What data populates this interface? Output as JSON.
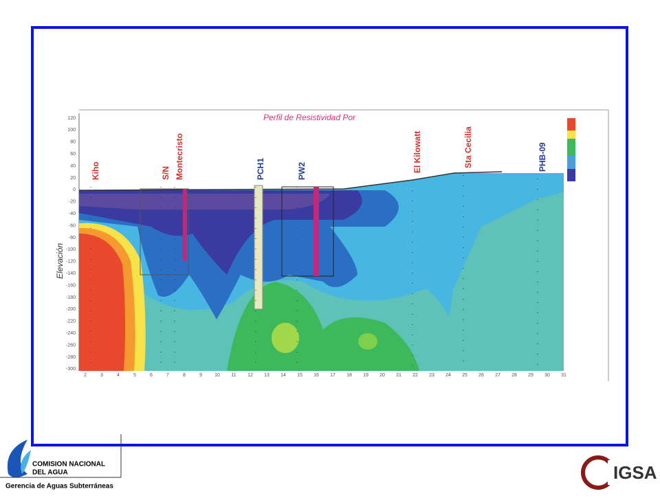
{
  "profile": {
    "title": "Perfil de Resistividad Por",
    "y_axis_label": "Elevación",
    "yticks": [
      120,
      100,
      80,
      60,
      40,
      20,
      0,
      -20,
      -40,
      -60,
      -80,
      -100,
      -120,
      -140,
      -160,
      -180,
      -200,
      -220,
      -240,
      -260,
      -280,
      -300
    ],
    "xticks": [
      2,
      3,
      4,
      5,
      6,
      7,
      8,
      9,
      10,
      11,
      12,
      13,
      14,
      15,
      16,
      17,
      18,
      19,
      20,
      21,
      22,
      23,
      24,
      25,
      26,
      27,
      28,
      29,
      30,
      31
    ],
    "wells": [
      "Kiho",
      "S/N",
      "Montecristo",
      "PCH1",
      "PW2",
      "El Kilowatt",
      "Sta Cecilia",
      "PHB-09"
    ]
  },
  "footer": {
    "org_line1": "COMISION NACIONAL",
    "org_line2": "DEL  AGUA",
    "department": "Gerencia de Aguas Subterráneas",
    "logo_right": "IGSA"
  }
}
